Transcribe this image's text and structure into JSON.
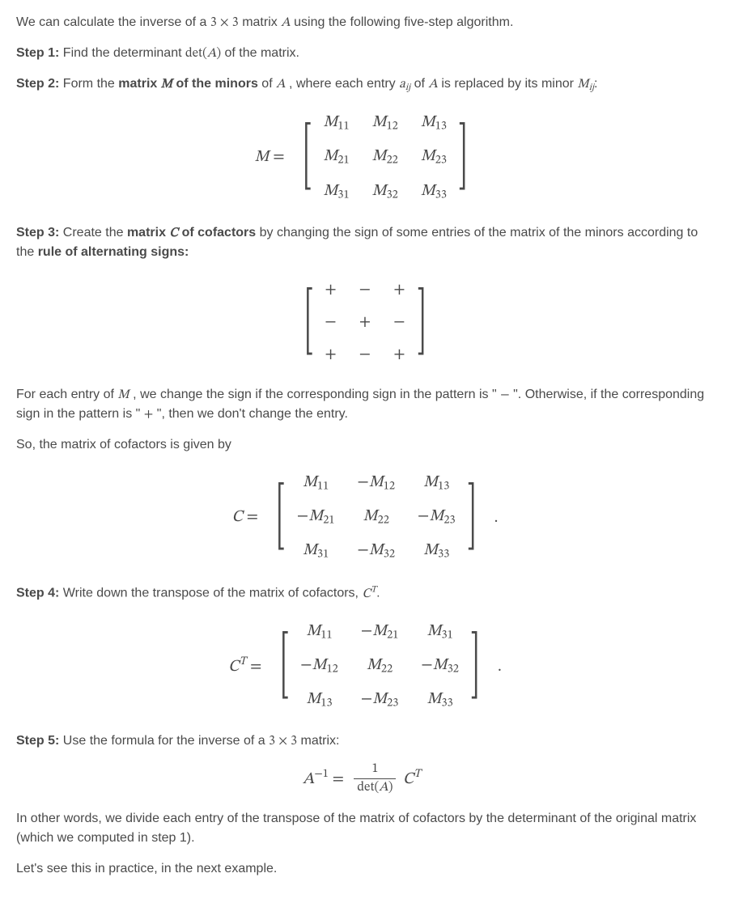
{
  "colors": {
    "text": "#4a4a4a",
    "background": "#ffffff"
  },
  "fontsize_body": 16,
  "intro": {
    "pre": "We can calculate the inverse of a ",
    "dim": "3 × 3",
    "mid": " matrix ",
    "A": "A",
    "post": " using the following five-step algorithm."
  },
  "step1": {
    "label": "Step 1:",
    "text_a": " Find the determinant ",
    "det": "det(A)",
    "text_b": " of the matrix."
  },
  "step2": {
    "label": "Step 2:",
    "t1": " Form the ",
    "b1": "matrix ",
    "Mb": "M",
    "b2": " of the minors",
    "t2": " of ",
    "A": "A",
    "t3": ", where each entry ",
    "aij": "aᵢⱼ",
    "t4": " of ",
    "A2": "A",
    "t5": " is replaced by its minor ",
    "Mij": "Mᵢⱼ",
    "colon": ":"
  },
  "minors_eq": {
    "lhs": "M =",
    "rows": [
      [
        "M11",
        "M12",
        "M13"
      ],
      [
        "M21",
        "M22",
        "M23"
      ],
      [
        "M31",
        "M32",
        "M33"
      ]
    ]
  },
  "step3": {
    "label": "Step 3:",
    "t1": " Create the ",
    "b1": "matrix ",
    "Cb": "C",
    "b2": " of cofactors",
    "t2": " by changing the sign of some entries of the matrix of the minors according to the ",
    "b3": "rule of alternating signs:"
  },
  "signs": {
    "rows": [
      [
        "+",
        "−",
        "+"
      ],
      [
        "−",
        "+",
        "−"
      ],
      [
        "+",
        "−",
        "+"
      ]
    ]
  },
  "step3_para2": {
    "t1": "For each entry of ",
    "M": "M",
    "t2": ", we change the sign if the corresponding sign in the pattern is \"",
    "minus": "−",
    "t3": "\". Otherwise, if the corresponding sign in the pattern is \"",
    "plus": "+",
    "t4": "\", then we don't change the entry."
  },
  "step3_para3": "So, the matrix of cofactors is given by",
  "cofactor_eq": {
    "lhs": "C =",
    "rows": [
      [
        {
          "neg": false,
          "s": "M11"
        },
        {
          "neg": true,
          "s": "M12"
        },
        {
          "neg": false,
          "s": "M13"
        }
      ],
      [
        {
          "neg": true,
          "s": "M21"
        },
        {
          "neg": false,
          "s": "M22"
        },
        {
          "neg": true,
          "s": "M23"
        }
      ],
      [
        {
          "neg": false,
          "s": "M31"
        },
        {
          "neg": true,
          "s": "M32"
        },
        {
          "neg": false,
          "s": "M33"
        }
      ]
    ]
  },
  "step4": {
    "label": "Step 4:",
    "t1": " Write down the transpose of the matrix of cofactors, ",
    "CT": "Cᵀ",
    "dot": "."
  },
  "transpose_eq": {
    "lhs": "Cᵀ =",
    "rows": [
      [
        {
          "neg": false,
          "s": "M11"
        },
        {
          "neg": true,
          "s": "M21"
        },
        {
          "neg": false,
          "s": "M31"
        }
      ],
      [
        {
          "neg": true,
          "s": "M12"
        },
        {
          "neg": false,
          "s": "M22"
        },
        {
          "neg": true,
          "s": "M32"
        }
      ],
      [
        {
          "neg": false,
          "s": "M13"
        },
        {
          "neg": true,
          "s": "M23"
        },
        {
          "neg": false,
          "s": "M33"
        }
      ]
    ]
  },
  "step5": {
    "label": "Step 5:",
    "t1": " Use the formula for the inverse of a ",
    "dim": "3 × 3",
    "t2": " matrix:"
  },
  "inverse_eq": {
    "lhs_A": "A",
    "lhs_exp": "−1",
    "eq": " = ",
    "num": "1",
    "den": "det(A)",
    "rhs": "Cᵀ"
  },
  "closing1": "In other words, we divide each entry of the transpose of the matrix of cofactors by the determinant of the original matrix (which we computed in step 1).",
  "closing2": "Let's see this in practice, in the next example."
}
